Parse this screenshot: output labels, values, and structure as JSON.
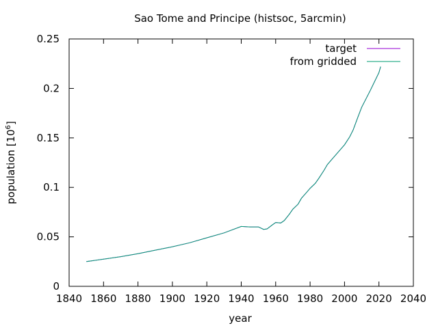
{
  "chart_data": {
    "type": "line",
    "title": "Sao Tome and Principe (histsoc, 5arcmin)",
    "xlabel": "year",
    "ylabel_main": "population [10",
    "ylabel_sup": "6",
    "ylabel_end": "]",
    "xlim": [
      1840,
      2040
    ],
    "ylim": [
      0,
      0.25
    ],
    "x_ticks": [
      1840,
      1860,
      1880,
      1900,
      1920,
      1940,
      1960,
      1980,
      2000,
      2020,
      2040
    ],
    "y_ticks": [
      0,
      0.05,
      0.1,
      0.15,
      0.2,
      0.25
    ],
    "y_tick_labels": [
      "0",
      "0.05",
      "0.1",
      "0.15",
      "0.2",
      "0.25"
    ],
    "grid": false,
    "legend_position": "top-right",
    "series": [
      {
        "name": "target",
        "color": "#9400d3",
        "x": [
          1850,
          1860,
          1870,
          1880,
          1890,
          1900,
          1910,
          1920,
          1930,
          1940,
          1945,
          1950,
          1953,
          1955,
          1958,
          1960,
          1963,
          1965,
          1968,
          1970,
          1973,
          1975,
          1978,
          1980,
          1983,
          1985,
          1988,
          1990,
          1993,
          1995,
          1998,
          2000,
          2003,
          2005,
          2008,
          2010,
          2015,
          2020,
          2021
        ],
        "y": [
          0.025,
          0.0275,
          0.03,
          0.033,
          0.0365,
          0.04,
          0.044,
          0.049,
          0.054,
          0.0605,
          0.06,
          0.06,
          0.0575,
          0.058,
          0.062,
          0.0645,
          0.064,
          0.0665,
          0.073,
          0.078,
          0.083,
          0.089,
          0.095,
          0.099,
          0.104,
          0.109,
          0.117,
          0.123,
          0.129,
          0.133,
          0.139,
          0.143,
          0.151,
          0.158,
          0.172,
          0.181,
          0.198,
          0.216,
          0.222
        ]
      },
      {
        "name": "from gridded",
        "color": "#009e73",
        "x": [
          1850,
          1860,
          1870,
          1880,
          1890,
          1900,
          1910,
          1920,
          1930,
          1940,
          1945,
          1950,
          1953,
          1955,
          1958,
          1960,
          1963,
          1965,
          1968,
          1970,
          1973,
          1975,
          1978,
          1980,
          1983,
          1985,
          1988,
          1990,
          1993,
          1995,
          1998,
          2000,
          2003,
          2005,
          2008,
          2010,
          2015,
          2020,
          2021
        ],
        "y": [
          0.025,
          0.0275,
          0.03,
          0.033,
          0.0365,
          0.04,
          0.044,
          0.049,
          0.054,
          0.0605,
          0.06,
          0.06,
          0.0575,
          0.058,
          0.062,
          0.0645,
          0.064,
          0.0665,
          0.073,
          0.078,
          0.083,
          0.089,
          0.095,
          0.099,
          0.104,
          0.109,
          0.117,
          0.123,
          0.129,
          0.133,
          0.139,
          0.143,
          0.151,
          0.158,
          0.172,
          0.181,
          0.198,
          0.216,
          0.222
        ]
      }
    ]
  }
}
